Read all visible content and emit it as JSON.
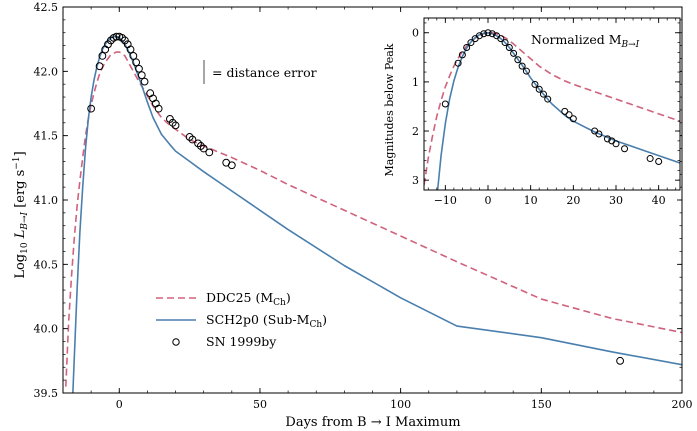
{
  "chart_data": [
    {
      "type": "line",
      "xlabel": "Days from B → I Maximum",
      "ylabel": "Log₁₀ L_{B→I} [erg s⁻¹]",
      "ylabel_main": "Log",
      "ylabel_sub": "10",
      "ylabel_L": "L",
      "ylabel_Lsub": "B→I",
      "ylabel_units": "[erg s",
      "ylabel_exp": "−1",
      "ylabel_close": "]",
      "xlim": [
        -20,
        200
      ],
      "ylim": [
        39.5,
        42.5
      ],
      "xticks": [
        0,
        50,
        100,
        150,
        200
      ],
      "yticks": [
        39.5,
        40.0,
        40.5,
        41.0,
        41.5,
        42.0,
        42.5
      ],
      "annotation": "= distance error",
      "legend_position": "lower-left",
      "legend": {
        "ddc_name": "DDC25 (M",
        "ddc_sub": "Ch",
        "ddc_close": ")",
        "sch_name": "SCH2p0 (Sub-M",
        "sch_sub": "Ch",
        "sch_close": ")",
        "obs_name": "SN 1999by"
      },
      "series": [
        {
          "name": "DDC25 (M_Ch)",
          "style": "dashed",
          "color": "#d0627c",
          "x": [
            -19,
            -18,
            -17,
            -16,
            -15,
            -14,
            -13,
            -12,
            -11,
            -10,
            -9,
            -8,
            -7,
            -6,
            -5,
            -4,
            -3,
            -2,
            -1,
            0,
            1,
            2,
            3,
            5,
            7,
            10,
            12,
            15,
            18,
            20,
            25,
            30,
            40,
            50,
            60,
            80,
            100,
            120,
            150,
            175,
            200
          ],
          "y": [
            39.55,
            40.05,
            40.4,
            40.7,
            40.95,
            41.15,
            41.33,
            41.5,
            41.63,
            41.74,
            41.83,
            41.91,
            41.98,
            42.03,
            42.07,
            42.1,
            42.13,
            42.14,
            42.15,
            42.15,
            42.14,
            42.12,
            42.08,
            42.0,
            41.92,
            41.81,
            41.73,
            41.64,
            41.58,
            41.55,
            41.47,
            41.42,
            41.33,
            41.23,
            41.12,
            40.92,
            40.72,
            40.52,
            40.23,
            40.08,
            39.97
          ]
        },
        {
          "name": "SCH2p0 (Sub-M_Ch)",
          "style": "solid",
          "color": "#4a7fad",
          "x": [
            -16.5,
            -15,
            -14,
            -13,
            -12,
            -11,
            -10,
            -9,
            -8,
            -7,
            -6,
            -5,
            -4,
            -3,
            -2,
            -1,
            0,
            1,
            2,
            3,
            4,
            5,
            6,
            8,
            10,
            12,
            15,
            18,
            20,
            25,
            30,
            40,
            50,
            60,
            80,
            100,
            120,
            150,
            175,
            200
          ],
          "y": [
            39.5,
            40.3,
            40.75,
            41.1,
            41.4,
            41.63,
            41.8,
            41.93,
            42.03,
            42.11,
            42.17,
            42.21,
            42.24,
            42.26,
            42.27,
            42.27,
            42.26,
            42.24,
            42.21,
            42.17,
            42.12,
            42.07,
            42.01,
            41.89,
            41.76,
            41.64,
            41.51,
            41.43,
            41.38,
            41.3,
            41.22,
            41.07,
            40.92,
            40.77,
            40.49,
            40.24,
            40.02,
            39.93,
            39.82,
            39.72
          ]
        },
        {
          "name": "SN 1999by",
          "style": "markers",
          "color": "#000000",
          "x": [
            -10,
            -7,
            -6,
            -5,
            -4,
            -3,
            -2,
            -1,
            0,
            1,
            2,
            3,
            4,
            5,
            6,
            7,
            8,
            9,
            11,
            12,
            13,
            14,
            18,
            19,
            20,
            25,
            26,
            28,
            29,
            30,
            32,
            38,
            40,
            178
          ],
          "y": [
            41.71,
            42.04,
            42.12,
            42.17,
            42.21,
            42.24,
            42.26,
            42.27,
            42.27,
            42.26,
            42.24,
            42.21,
            42.17,
            42.12,
            42.07,
            42.02,
            41.97,
            41.92,
            41.83,
            41.79,
            41.75,
            41.71,
            41.63,
            41.6,
            41.58,
            41.49,
            41.47,
            41.44,
            41.42,
            41.4,
            41.37,
            41.29,
            41.27,
            39.75
          ]
        }
      ]
    },
    {
      "type": "line",
      "title": "Normalized M",
      "title_sub": "B→I",
      "ylabel": "Magnitudes below Peak",
      "xlim": [
        -15,
        45
      ],
      "ylim": [
        3.2,
        -0.3
      ],
      "xticks": [
        -10,
        0,
        10,
        20,
        30,
        40
      ],
      "yticks": [
        0,
        1,
        2,
        3
      ],
      "series": [
        {
          "name": "DDC25 (M_Ch)",
          "style": "dashed",
          "color": "#d0627c",
          "x": [
            -15,
            -14,
            -13,
            -12,
            -11,
            -10,
            -9,
            -8,
            -7,
            -6,
            -5,
            -4,
            -3,
            -2,
            -1,
            0,
            1,
            2,
            3,
            4,
            5,
            6,
            8,
            10,
            12,
            15,
            18,
            20,
            25,
            30,
            35,
            40,
            45
          ],
          "y": [
            3.1,
            2.55,
            2.1,
            1.7,
            1.38,
            1.1,
            0.88,
            0.68,
            0.52,
            0.38,
            0.27,
            0.18,
            0.11,
            0.05,
            0.02,
            0.0,
            0.0,
            0.02,
            0.05,
            0.1,
            0.16,
            0.23,
            0.38,
            0.53,
            0.68,
            0.85,
            0.98,
            1.05,
            1.2,
            1.35,
            1.5,
            1.65,
            1.8
          ]
        },
        {
          "name": "SCH2p0 (Sub-M_Ch)",
          "style": "solid",
          "color": "#4a7fad",
          "x": [
            -11.8,
            -11,
            -10,
            -9,
            -8,
            -7,
            -6,
            -5,
            -4,
            -3,
            -2,
            -1,
            0,
            1,
            2,
            3,
            4,
            5,
            6,
            8,
            10,
            12,
            15,
            18,
            20,
            25,
            30,
            35,
            40,
            45
          ],
          "y": [
            3.2,
            2.5,
            1.85,
            1.35,
            0.98,
            0.7,
            0.48,
            0.31,
            0.19,
            0.1,
            0.04,
            0.01,
            0.0,
            0.02,
            0.06,
            0.12,
            0.2,
            0.3,
            0.42,
            0.66,
            0.92,
            1.15,
            1.45,
            1.68,
            1.8,
            2.02,
            2.2,
            2.35,
            2.5,
            2.65
          ]
        },
        {
          "name": "SN 1999by",
          "style": "markers",
          "color": "#000000",
          "x": [
            -10,
            -7,
            -6,
            -5,
            -4,
            -3,
            -2,
            -1,
            0,
            1,
            2,
            3,
            4,
            5,
            6,
            7,
            8,
            9,
            11,
            12,
            13,
            14,
            18,
            19,
            20,
            25,
            26,
            28,
            29,
            30,
            32,
            38,
            40
          ],
          "y": [
            1.45,
            0.62,
            0.45,
            0.3,
            0.2,
            0.12,
            0.06,
            0.02,
            0.0,
            0.02,
            0.06,
            0.12,
            0.2,
            0.3,
            0.42,
            0.55,
            0.68,
            0.78,
            1.05,
            1.15,
            1.25,
            1.35,
            1.6,
            1.67,
            1.75,
            2.0,
            2.06,
            2.16,
            2.2,
            2.26,
            2.36,
            2.56,
            2.62
          ]
        }
      ]
    }
  ]
}
